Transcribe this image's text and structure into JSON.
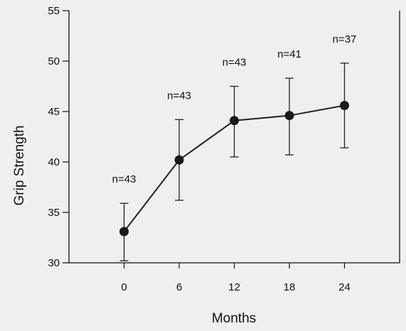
{
  "chart_data": {
    "type": "line",
    "title": "",
    "xlabel": "Months",
    "ylabel": "Grip Strength",
    "xlim": [
      -6,
      30
    ],
    "ylim": [
      30,
      55
    ],
    "x_ticks": [
      0,
      6,
      12,
      18,
      24
    ],
    "x_tick_labels": [
      "0",
      "6",
      "12",
      "18",
      "24"
    ],
    "y_ticks": [
      30,
      35,
      40,
      45,
      50,
      55
    ],
    "y_tick_labels": [
      "30",
      "35",
      "40",
      "45",
      "50",
      "55"
    ],
    "grid": false,
    "series": [
      {
        "x": [
          0,
          6,
          12,
          18,
          24
        ],
        "y": [
          33.1,
          40.2,
          44.1,
          44.6,
          45.6
        ],
        "err_low": [
          30.2,
          36.2,
          40.5,
          40.7,
          41.4
        ],
        "err_high": [
          35.9,
          44.2,
          47.5,
          48.3,
          49.8
        ],
        "annotations": [
          "n=43",
          "n=43",
          "n=43",
          "n=41",
          "n=37"
        ]
      }
    ],
    "colors": {
      "line": "#222222",
      "marker": "#1a1a1a",
      "background": "#efefef"
    }
  }
}
